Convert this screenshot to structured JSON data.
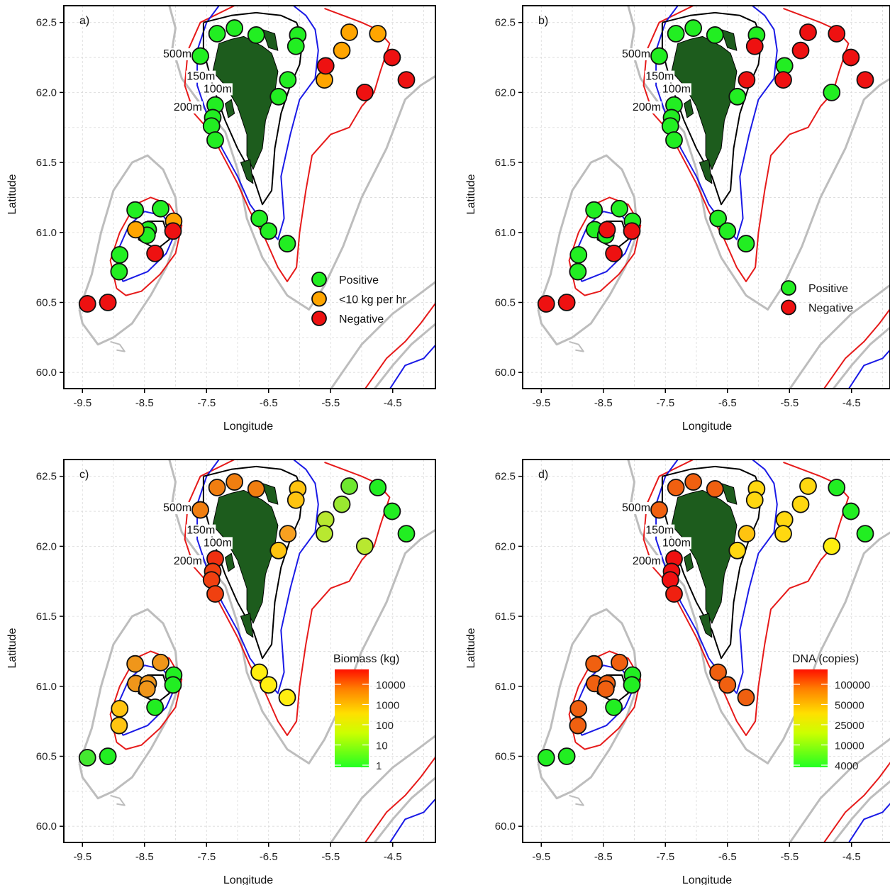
{
  "chart_data": {
    "type": "scatter",
    "xlabel": "Longitude",
    "ylabel": "Latitude",
    "xlim": [
      -9.8,
      -3.8
    ],
    "ylim": [
      59.88,
      62.62
    ],
    "x_ticks": [
      "-9.5",
      "-8.5",
      "-7.5",
      "-6.5",
      "-5.5",
      "-4.5"
    ],
    "y_ticks": [
      "60.0",
      "60.5",
      "61.0",
      "61.5",
      "62.0",
      "62.5"
    ],
    "grid": true,
    "contour_labels": [
      {
        "text": "500m",
        "lon": -8.2,
        "lat": 62.25,
        "color": "#bdbdbd"
      },
      {
        "text": "150m",
        "lon": -7.82,
        "lat": 62.09,
        "color": "#1a1ae6"
      },
      {
        "text": "100m",
        "lon": -7.55,
        "lat": 62.0,
        "color": "#000000"
      },
      {
        "text": "200m",
        "lon": -8.03,
        "lat": 61.87,
        "color": "#e61a1a"
      }
    ],
    "colors": {
      "positive": "#22ee22",
      "low": "#ffa500",
      "negative": "#ee1111",
      "contour_100m": "#000000",
      "contour_150m": "#1a1ae6",
      "contour_200m": "#e61a1a",
      "contour_500m": "#bdbdbd",
      "land": "#1d5c1d"
    },
    "panels": [
      {
        "label": "a)",
        "legend": {
          "placement": "bottom-right",
          "entries": [
            {
              "label": "Positive",
              "color": "#22ee22"
            },
            {
              "label": "<10 kg per hr",
              "color": "#ffa500"
            },
            {
              "label": "Negative",
              "color": "#ee1111"
            }
          ]
        },
        "points": [
          {
            "lon": -7.6,
            "lat": 62.26,
            "cat": "P"
          },
          {
            "lon": -7.33,
            "lat": 62.42,
            "cat": "P"
          },
          {
            "lon": -7.05,
            "lat": 62.46,
            "cat": "P"
          },
          {
            "lon": -6.7,
            "lat": 62.41,
            "cat": "P"
          },
          {
            "lon": -6.03,
            "lat": 62.41,
            "cat": "P"
          },
          {
            "lon": -6.06,
            "lat": 62.33,
            "cat": "P"
          },
          {
            "lon": -6.19,
            "lat": 62.09,
            "cat": "P"
          },
          {
            "lon": -6.34,
            "lat": 61.97,
            "cat": "P"
          },
          {
            "lon": -7.36,
            "lat": 61.91,
            "cat": "P"
          },
          {
            "lon": -7.4,
            "lat": 61.82,
            "cat": "P"
          },
          {
            "lon": -7.42,
            "lat": 61.76,
            "cat": "P"
          },
          {
            "lon": -7.36,
            "lat": 61.66,
            "cat": "P"
          },
          {
            "lon": -6.65,
            "lat": 61.1,
            "cat": "P"
          },
          {
            "lon": -6.5,
            "lat": 61.01,
            "cat": "P"
          },
          {
            "lon": -6.2,
            "lat": 60.92,
            "cat": "P"
          },
          {
            "lon": -8.65,
            "lat": 61.16,
            "cat": "P"
          },
          {
            "lon": -8.24,
            "lat": 61.17,
            "cat": "P"
          },
          {
            "lon": -8.44,
            "lat": 61.02,
            "cat": "P"
          },
          {
            "lon": -8.46,
            "lat": 60.98,
            "cat": "P"
          },
          {
            "lon": -8.9,
            "lat": 60.84,
            "cat": "P"
          },
          {
            "lon": -8.91,
            "lat": 60.72,
            "cat": "P"
          },
          {
            "lon": -5.2,
            "lat": 62.43,
            "cat": "L"
          },
          {
            "lon": -4.74,
            "lat": 62.42,
            "cat": "L"
          },
          {
            "lon": -5.32,
            "lat": 62.3,
            "cat": "L"
          },
          {
            "lon": -5.6,
            "lat": 62.09,
            "cat": "L"
          },
          {
            "lon": -8.64,
            "lat": 61.02,
            "cat": "L"
          },
          {
            "lon": -8.03,
            "lat": 61.08,
            "cat": "L"
          },
          {
            "lon": -5.58,
            "lat": 62.19,
            "cat": "N"
          },
          {
            "lon": -4.95,
            "lat": 62.0,
            "cat": "N"
          },
          {
            "lon": -4.51,
            "lat": 62.25,
            "cat": "N"
          },
          {
            "lon": -4.28,
            "lat": 62.09,
            "cat": "N"
          },
          {
            "lon": -8.04,
            "lat": 61.01,
            "cat": "N"
          },
          {
            "lon": -8.33,
            "lat": 60.85,
            "cat": "N"
          },
          {
            "lon": -9.42,
            "lat": 60.49,
            "cat": "N"
          },
          {
            "lon": -9.09,
            "lat": 60.5,
            "cat": "N"
          }
        ]
      },
      {
        "label": "b)",
        "legend": {
          "placement": "bottom-right",
          "entries": [
            {
              "label": "Positive",
              "color": "#22ee22"
            },
            {
              "label": "Negative",
              "color": "#ee1111"
            }
          ]
        },
        "points": [
          {
            "lon": -7.6,
            "lat": 62.26,
            "cat": "P"
          },
          {
            "lon": -7.33,
            "lat": 62.42,
            "cat": "P"
          },
          {
            "lon": -7.05,
            "lat": 62.46,
            "cat": "P"
          },
          {
            "lon": -6.7,
            "lat": 62.41,
            "cat": "P"
          },
          {
            "lon": -6.03,
            "lat": 62.41,
            "cat": "P"
          },
          {
            "lon": -5.58,
            "lat": 62.19,
            "cat": "P"
          },
          {
            "lon": -6.34,
            "lat": 61.97,
            "cat": "P"
          },
          {
            "lon": -4.82,
            "lat": 62.0,
            "cat": "P"
          },
          {
            "lon": -7.36,
            "lat": 61.91,
            "cat": "P"
          },
          {
            "lon": -7.4,
            "lat": 61.82,
            "cat": "P"
          },
          {
            "lon": -7.42,
            "lat": 61.76,
            "cat": "P"
          },
          {
            "lon": -7.36,
            "lat": 61.66,
            "cat": "P"
          },
          {
            "lon": -6.65,
            "lat": 61.1,
            "cat": "P"
          },
          {
            "lon": -6.5,
            "lat": 61.01,
            "cat": "P"
          },
          {
            "lon": -6.2,
            "lat": 60.92,
            "cat": "P"
          },
          {
            "lon": -8.65,
            "lat": 61.16,
            "cat": "P"
          },
          {
            "lon": -8.24,
            "lat": 61.17,
            "cat": "P"
          },
          {
            "lon": -8.64,
            "lat": 61.02,
            "cat": "P"
          },
          {
            "lon": -8.46,
            "lat": 60.98,
            "cat": "P"
          },
          {
            "lon": -8.03,
            "lat": 61.08,
            "cat": "P"
          },
          {
            "lon": -8.9,
            "lat": 60.84,
            "cat": "P"
          },
          {
            "lon": -8.91,
            "lat": 60.72,
            "cat": "P"
          },
          {
            "lon": -5.2,
            "lat": 62.43,
            "cat": "N"
          },
          {
            "lon": -4.74,
            "lat": 62.42,
            "cat": "N"
          },
          {
            "lon": -5.32,
            "lat": 62.3,
            "cat": "N"
          },
          {
            "lon": -6.06,
            "lat": 62.33,
            "cat": "N"
          },
          {
            "lon": -6.19,
            "lat": 62.09,
            "cat": "N"
          },
          {
            "lon": -5.6,
            "lat": 62.09,
            "cat": "N"
          },
          {
            "lon": -4.51,
            "lat": 62.25,
            "cat": "N"
          },
          {
            "lon": -4.28,
            "lat": 62.09,
            "cat": "N"
          },
          {
            "lon": -8.44,
            "lat": 61.02,
            "cat": "N"
          },
          {
            "lon": -8.04,
            "lat": 61.01,
            "cat": "N"
          },
          {
            "lon": -8.33,
            "lat": 60.85,
            "cat": "N"
          },
          {
            "lon": -9.42,
            "lat": 60.49,
            "cat": "N"
          },
          {
            "lon": -9.09,
            "lat": 60.5,
            "cat": "N"
          }
        ]
      },
      {
        "label": "c)",
        "legend": {
          "title": "Biomass (kg)",
          "placement": "right",
          "labels": [
            "10000",
            "1000",
            "100",
            "10",
            "1"
          ]
        },
        "points": [
          {
            "lon": -7.6,
            "lat": 62.26,
            "color": "#f07e10"
          },
          {
            "lon": -7.33,
            "lat": 62.42,
            "color": "#f07e10"
          },
          {
            "lon": -7.05,
            "lat": 62.46,
            "color": "#f07e10"
          },
          {
            "lon": -6.7,
            "lat": 62.41,
            "color": "#f07e10"
          },
          {
            "lon": -6.03,
            "lat": 62.41,
            "color": "#ffc410"
          },
          {
            "lon": -6.06,
            "lat": 62.33,
            "color": "#ffc410"
          },
          {
            "lon": -6.19,
            "lat": 62.09,
            "color": "#f8a020"
          },
          {
            "lon": -6.34,
            "lat": 61.97,
            "color": "#ffc410"
          },
          {
            "lon": -7.36,
            "lat": 61.91,
            "color": "#f03010"
          },
          {
            "lon": -7.4,
            "lat": 61.82,
            "color": "#f04010"
          },
          {
            "lon": -7.42,
            "lat": 61.76,
            "color": "#f04010"
          },
          {
            "lon": -7.36,
            "lat": 61.66,
            "color": "#f04010"
          },
          {
            "lon": -6.65,
            "lat": 61.1,
            "color": "#ffee10"
          },
          {
            "lon": -6.5,
            "lat": 61.01,
            "color": "#ffee10"
          },
          {
            "lon": -6.2,
            "lat": 60.92,
            "color": "#ffee10"
          },
          {
            "lon": -5.58,
            "lat": 62.19,
            "color": "#b8e830"
          },
          {
            "lon": -5.6,
            "lat": 62.09,
            "color": "#b8e830"
          },
          {
            "lon": -5.32,
            "lat": 62.3,
            "color": "#9ae830"
          },
          {
            "lon": -5.2,
            "lat": 62.43,
            "color": "#6ee830"
          },
          {
            "lon": -4.95,
            "lat": 62.0,
            "color": "#b8e830"
          },
          {
            "lon": -4.74,
            "lat": 62.42,
            "color": "#22ee22"
          },
          {
            "lon": -4.51,
            "lat": 62.25,
            "color": "#22ee22"
          },
          {
            "lon": -4.28,
            "lat": 62.09,
            "color": "#22ee22"
          },
          {
            "lon": -8.65,
            "lat": 61.16,
            "color": "#f0961a"
          },
          {
            "lon": -8.24,
            "lat": 61.17,
            "color": "#f0961a"
          },
          {
            "lon": -8.64,
            "lat": 61.02,
            "color": "#f0961a"
          },
          {
            "lon": -8.44,
            "lat": 61.02,
            "color": "#f0961a"
          },
          {
            "lon": -8.46,
            "lat": 60.98,
            "color": "#f0961a"
          },
          {
            "lon": -8.03,
            "lat": 61.08,
            "color": "#22ee22"
          },
          {
            "lon": -8.04,
            "lat": 61.01,
            "color": "#22ee22"
          },
          {
            "lon": -8.33,
            "lat": 60.85,
            "color": "#22ee22"
          },
          {
            "lon": -8.9,
            "lat": 60.84,
            "color": "#ffc410"
          },
          {
            "lon": -8.91,
            "lat": 60.72,
            "color": "#ffc410"
          },
          {
            "lon": -9.42,
            "lat": 60.49,
            "color": "#44e830"
          },
          {
            "lon": -9.09,
            "lat": 60.5,
            "color": "#22ee22"
          }
        ]
      },
      {
        "label": "d)",
        "legend": {
          "title": "DNA (copies)",
          "placement": "right",
          "labels": [
            "100000",
            "50000",
            "25000",
            "10000",
            "4000"
          ]
        },
        "points": [
          {
            "lon": -7.6,
            "lat": 62.26,
            "color": "#f06010"
          },
          {
            "lon": -7.33,
            "lat": 62.42,
            "color": "#f06010"
          },
          {
            "lon": -7.05,
            "lat": 62.46,
            "color": "#f06010"
          },
          {
            "lon": -6.7,
            "lat": 62.41,
            "color": "#f06010"
          },
          {
            "lon": -6.03,
            "lat": 62.41,
            "color": "#ffd810"
          },
          {
            "lon": -6.06,
            "lat": 62.33,
            "color": "#ffd810"
          },
          {
            "lon": -6.19,
            "lat": 62.09,
            "color": "#ffc410"
          },
          {
            "lon": -6.34,
            "lat": 61.97,
            "color": "#ffd810"
          },
          {
            "lon": -7.36,
            "lat": 61.91,
            "color": "#f01010"
          },
          {
            "lon": -7.4,
            "lat": 61.82,
            "color": "#f01010"
          },
          {
            "lon": -7.42,
            "lat": 61.76,
            "color": "#f01010"
          },
          {
            "lon": -7.36,
            "lat": 61.66,
            "color": "#f02010"
          },
          {
            "lon": -6.65,
            "lat": 61.1,
            "color": "#f06010"
          },
          {
            "lon": -6.5,
            "lat": 61.01,
            "color": "#f06010"
          },
          {
            "lon": -6.2,
            "lat": 60.92,
            "color": "#f06010"
          },
          {
            "lon": -5.58,
            "lat": 62.19,
            "color": "#ffd810"
          },
          {
            "lon": -5.6,
            "lat": 62.09,
            "color": "#ffd810"
          },
          {
            "lon": -5.32,
            "lat": 62.3,
            "color": "#ffd810"
          },
          {
            "lon": -5.2,
            "lat": 62.43,
            "color": "#ffd810"
          },
          {
            "lon": -4.82,
            "lat": 62.0,
            "color": "#ffee10"
          },
          {
            "lon": -4.74,
            "lat": 62.42,
            "color": "#22ee22"
          },
          {
            "lon": -4.51,
            "lat": 62.25,
            "color": "#22ee22"
          },
          {
            "lon": -4.28,
            "lat": 62.09,
            "color": "#22ee22"
          },
          {
            "lon": -8.65,
            "lat": 61.16,
            "color": "#f06010"
          },
          {
            "lon": -8.24,
            "lat": 61.17,
            "color": "#f06010"
          },
          {
            "lon": -8.64,
            "lat": 61.02,
            "color": "#f06010"
          },
          {
            "lon": -8.44,
            "lat": 61.02,
            "color": "#f06010"
          },
          {
            "lon": -8.46,
            "lat": 60.98,
            "color": "#f06010"
          },
          {
            "lon": -8.03,
            "lat": 61.08,
            "color": "#22ee22"
          },
          {
            "lon": -8.04,
            "lat": 61.01,
            "color": "#22ee22"
          },
          {
            "lon": -8.33,
            "lat": 60.85,
            "color": "#22ee22"
          },
          {
            "lon": -8.9,
            "lat": 60.84,
            "color": "#f06010"
          },
          {
            "lon": -8.91,
            "lat": 60.72,
            "color": "#f06010"
          },
          {
            "lon": -9.42,
            "lat": 60.49,
            "color": "#22ee22"
          },
          {
            "lon": -9.09,
            "lat": 60.5,
            "color": "#22ee22"
          }
        ]
      }
    ]
  }
}
